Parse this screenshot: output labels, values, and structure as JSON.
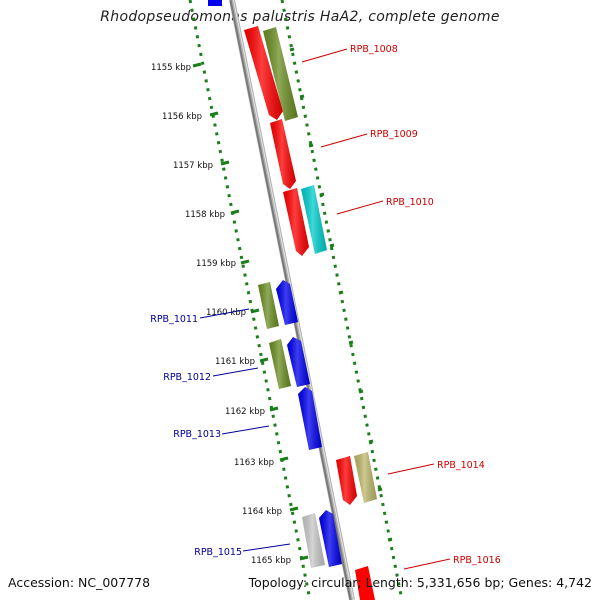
{
  "title": "Rhodopseudomonas palustris HaA2, complete genome",
  "accession_text": "Accession: NC_007778",
  "topology_text": "Topology: circular; Length: 5,331,656 bp; Genes: 4,742",
  "colors": {
    "backbone": "#8a8a8a",
    "dots": "#1a7f1a",
    "label_plus": "#cc0000",
    "label_minus": "#000099",
    "red": "#ff0000",
    "olive": "#6b8e23",
    "cyan": "#00cccc",
    "blue": "#0000ee",
    "khaki": "#bdb76b",
    "gray": "#c8c8c8"
  },
  "tick_labels": [
    "1155 kbp",
    "1156 kbp",
    "1157 kbp",
    "1158 kbp",
    "1159 kbp",
    "1160 kbp",
    "1161 kbp",
    "1162 kbp",
    "1163 kbp",
    "1164 kbp",
    "1165 kbp"
  ],
  "gene_labels": {
    "plus": [
      "RPB_1008",
      "RPB_1009",
      "RPB_1010",
      "RPB_1014",
      "RPB_1016"
    ],
    "minus": [
      "RPB_1011",
      "RPB_1012",
      "RPB_1013",
      "RPB_1015"
    ]
  }
}
